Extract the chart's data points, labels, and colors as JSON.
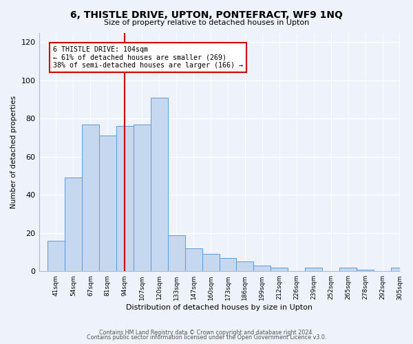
{
  "title": "6, THISTLE DRIVE, UPTON, PONTEFRACT, WF9 1NQ",
  "subtitle": "Size of property relative to detached houses in Upton",
  "xlabel": "Distribution of detached houses by size in Upton",
  "ylabel": "Number of detached properties",
  "bar_labels": [
    "41sqm",
    "54sqm",
    "67sqm",
    "81sqm",
    "94sqm",
    "107sqm",
    "120sqm",
    "133sqm",
    "147sqm",
    "160sqm",
    "173sqm",
    "186sqm",
    "199sqm",
    "212sqm",
    "226sqm",
    "239sqm",
    "252sqm",
    "265sqm",
    "278sqm",
    "292sqm",
    "305sqm"
  ],
  "bar_values": [
    16,
    49,
    77,
    71,
    76,
    77,
    91,
    19,
    12,
    9,
    7,
    5,
    3,
    2,
    0,
    2,
    0,
    2,
    1,
    0,
    2
  ],
  "bar_color": "#c5d8f0",
  "bar_edge_color": "#5b9bd5",
  "ylim": [
    0,
    125
  ],
  "yticks": [
    0,
    20,
    40,
    60,
    80,
    100,
    120
  ],
  "property_line_x": 4.5,
  "property_line_color": "#cc0000",
  "annotation_line1": "6 THISTLE DRIVE: 104sqm",
  "annotation_line2": "← 61% of detached houses are smaller (269)",
  "annotation_line3": "38% of semi-detached houses are larger (166) →",
  "annotation_box_color": "#ffffff",
  "annotation_box_edge": "#cc0000",
  "footer_line1": "Contains HM Land Registry data © Crown copyright and database right 2024.",
  "footer_line2": "Contains public sector information licensed under the Open Government Licence v3.0.",
  "background_color": "#edf2fb",
  "grid_color": "#ffffff",
  "spine_color": "#b0b8cc"
}
